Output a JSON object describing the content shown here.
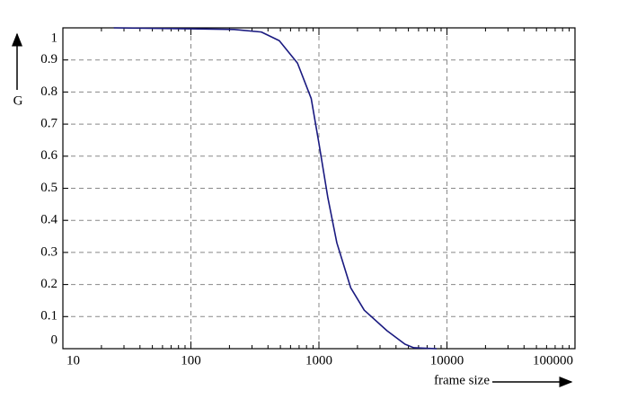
{
  "chart_data": {
    "type": "line",
    "xlabel": "frame size",
    "ylabel": "G",
    "xscale": "log",
    "xlim": [
      10,
      100000
    ],
    "xticks": [
      10,
      100,
      1000,
      10000,
      100000
    ],
    "ylim": [
      0,
      1
    ],
    "yticks": [
      0,
      0.1,
      0.2,
      0.3,
      0.4,
      0.5,
      0.6,
      0.7,
      0.8,
      0.9,
      1
    ],
    "grid": true,
    "x": [
      25,
      100,
      218,
      355,
      490,
      680,
      870,
      1000,
      1175,
      1380,
      1770,
      2260,
      3400,
      4700,
      5500,
      8300
    ],
    "series": [
      {
        "color": "#1a1a80",
        "values": [
          1.0,
          0.997,
          0.995,
          0.987,
          0.96,
          0.89,
          0.78,
          0.64,
          0.47,
          0.33,
          0.19,
          0.12,
          0.056,
          0.014,
          0.003,
          0
        ]
      }
    ]
  }
}
